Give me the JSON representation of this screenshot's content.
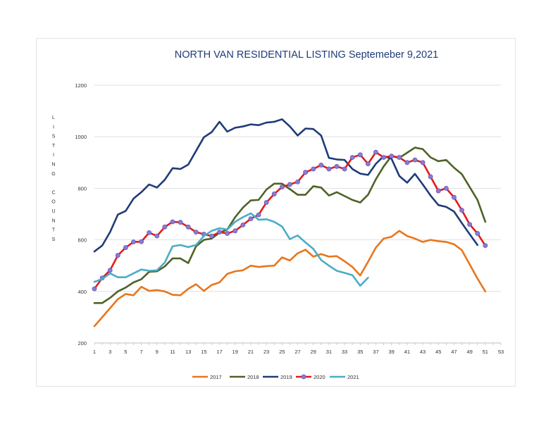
{
  "chart_data": {
    "type": "line",
    "title": "NORTH VAN RESIDENTIAL LISTING Septemeber 9,2021",
    "ylabel": "LISTING COUNTS",
    "xlabel": "",
    "xlim": [
      1,
      53
    ],
    "ylim": [
      200,
      1200
    ],
    "x_ticks": [
      1,
      3,
      5,
      7,
      9,
      11,
      13,
      15,
      17,
      19,
      21,
      23,
      25,
      27,
      29,
      31,
      33,
      35,
      37,
      39,
      41,
      43,
      45,
      47,
      49,
      51,
      53
    ],
    "y_ticks": [
      200,
      400,
      600,
      800,
      1000,
      1200
    ],
    "grid": "horizontal",
    "legend_position": "bottom",
    "series": [
      {
        "name": "2017",
        "color": "#e8761e",
        "markers": false,
        "values": [
          265,
          300,
          335,
          370,
          390,
          385,
          418,
          402,
          405,
          400,
          387,
          385,
          410,
          428,
          402,
          425,
          435,
          468,
          478,
          482,
          500,
          495,
          498,
          500,
          532,
          520,
          548,
          562,
          535,
          545,
          535,
          537,
          517,
          495,
          462,
          515,
          570,
          605,
          612,
          635,
          615,
          605,
          592,
          600,
          595,
          592,
          583,
          560,
          505,
          450,
          400
        ]
      },
      {
        "name": "2018",
        "color": "#4f6228",
        "markers": false,
        "values": [
          355,
          355,
          375,
          400,
          415,
          435,
          447,
          476,
          478,
          497,
          528,
          528,
          510,
          575,
          600,
          605,
          628,
          640,
          688,
          725,
          753,
          755,
          795,
          818,
          818,
          797,
          775,
          775,
          808,
          803,
          772,
          785,
          770,
          755,
          745,
          775,
          835,
          885,
          925,
          918,
          938,
          958,
          952,
          920,
          905,
          910,
          880,
          855,
          805,
          755,
          670
        ]
      },
      {
        "name": "2019",
        "color": "#1f3c78",
        "markers": false,
        "values": [
          555,
          578,
          630,
          698,
          712,
          760,
          785,
          815,
          803,
          833,
          878,
          875,
          892,
          945,
          998,
          1018,
          1058,
          1020,
          1035,
          1040,
          1048,
          1045,
          1055,
          1058,
          1068,
          1040,
          1005,
          1032,
          1030,
          1005,
          918,
          912,
          910,
          875,
          857,
          852,
          895,
          925,
          915,
          848,
          822,
          856,
          815,
          772,
          735,
          728,
          710,
          665,
          622,
          580
        ]
      },
      {
        "name": "2020",
        "color": "#e41a1c",
        "markers": true,
        "marker_color": "#8a7bd1",
        "values": [
          410,
          452,
          482,
          540,
          570,
          592,
          593,
          628,
          615,
          650,
          670,
          668,
          650,
          630,
          622,
          615,
          630,
          625,
          635,
          658,
          682,
          697,
          745,
          778,
          805,
          815,
          825,
          862,
          875,
          890,
          875,
          885,
          875,
          920,
          930,
          895,
          940,
          920,
          925,
          920,
          900,
          910,
          900,
          845,
          790,
          800,
          765,
          715,
          660,
          625,
          578
        ]
      },
      {
        "name": "2021",
        "color": "#4bacc6",
        "markers": false,
        "values": [
          437,
          448,
          470,
          455,
          455,
          470,
          485,
          480,
          482,
          512,
          575,
          580,
          572,
          580,
          615,
          635,
          645,
          640,
          670,
          688,
          703,
          678,
          680,
          670,
          652,
          603,
          617,
          590,
          565,
          522,
          500,
          480,
          472,
          463,
          422,
          453
        ]
      }
    ]
  }
}
